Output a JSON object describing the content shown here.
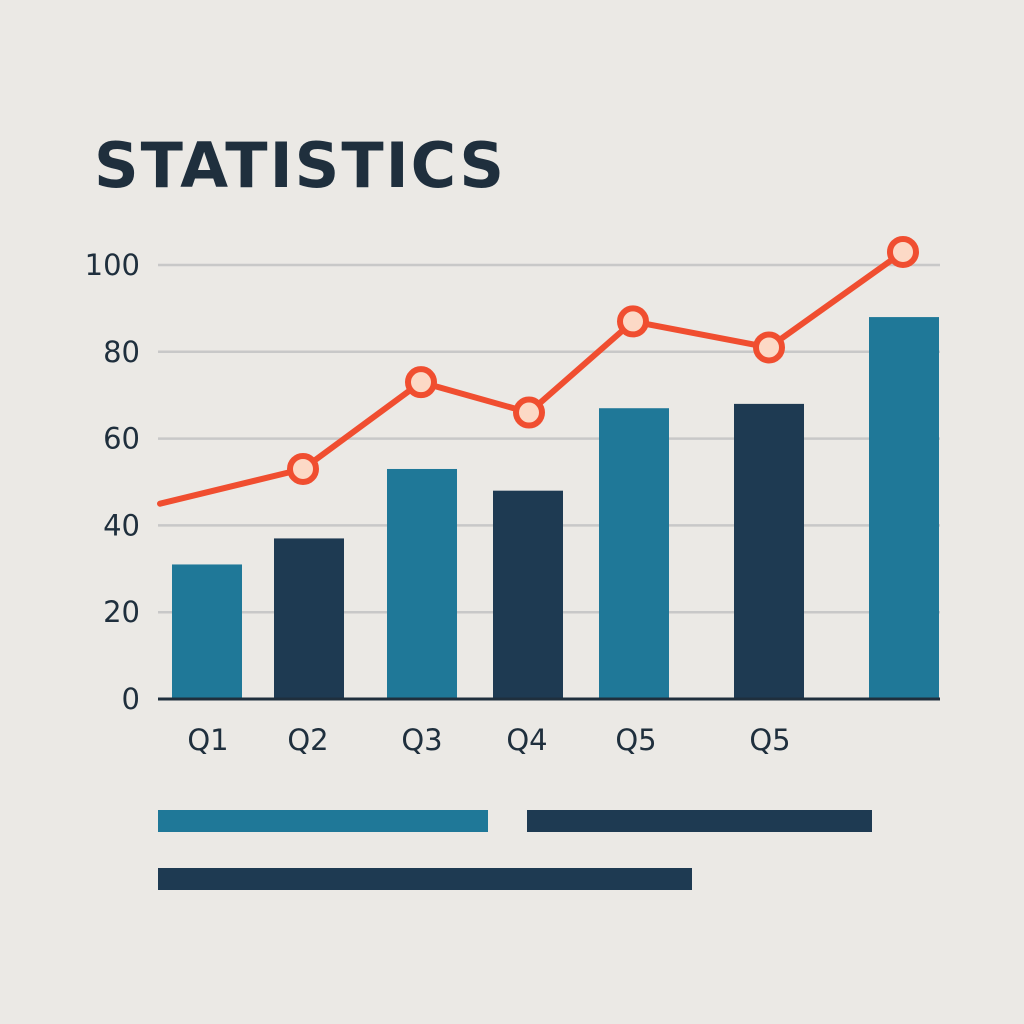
{
  "title": "STATISTICS",
  "colors": {
    "background": "#ebe9e5",
    "bar_teal": "#1f7898",
    "bar_navy": "#1e3a52",
    "line": "#f04e30",
    "marker_fill": "#fcd9c6",
    "grid": "#c8c8c8",
    "axis": "#1f2f3d",
    "text": "#1f2f3d"
  },
  "chart_data": {
    "type": "bar",
    "title": "STATISTICS",
    "xlabel": "",
    "ylabel": "",
    "ylim": [
      0,
      100
    ],
    "yticks": [
      "0",
      "20",
      "40",
      "60",
      "80",
      "100"
    ],
    "categories": [
      "Q1",
      "Q2",
      "Q3",
      "Q4",
      "Q5",
      "Q5",
      ""
    ],
    "grid": true,
    "series": [
      {
        "type": "bar",
        "values": [
          31,
          37,
          53,
          48,
          67,
          68,
          88
        ],
        "colors": [
          "#1f7898",
          "#1e3a52",
          "#1f7898",
          "#1e3a52",
          "#1f7898",
          "#1e3a52",
          "#1f7898"
        ]
      },
      {
        "type": "line",
        "values": [
          45,
          53,
          73,
          66,
          87,
          81,
          103
        ],
        "color": "#f04e30",
        "markers": true
      }
    ]
  },
  "legend": {
    "bars": [
      {
        "color": "#1f7898"
      },
      {
        "color": "#1e3a52"
      },
      {
        "color": "#1e3a52"
      }
    ]
  }
}
